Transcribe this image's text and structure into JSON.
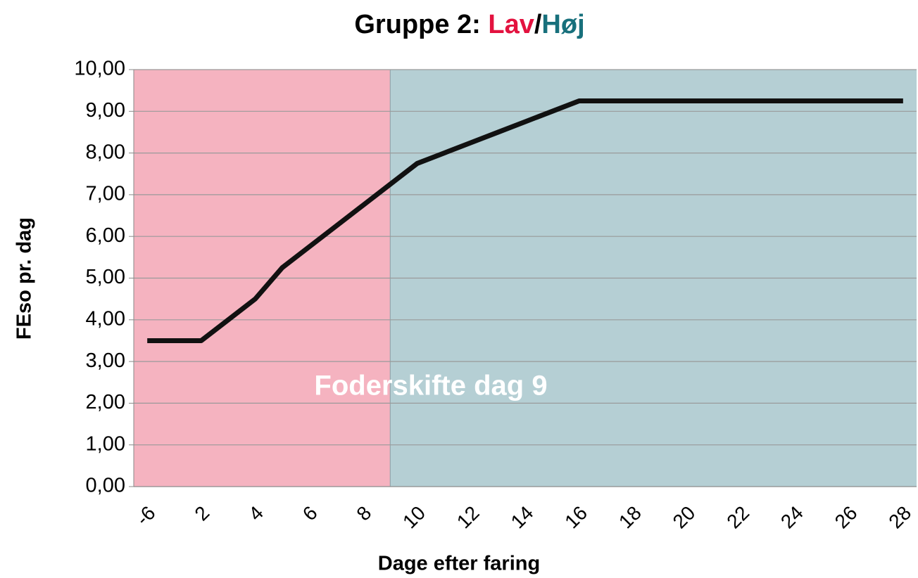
{
  "chart_data": {
    "type": "line",
    "title": [
      {
        "text": "Gruppe 2: "
      },
      {
        "text": "Lav",
        "color": "#e3123f"
      },
      {
        "text": "/"
      },
      {
        "text": "Høj",
        "color": "#18707c"
      }
    ],
    "annotation": "Foderskifte dag 9",
    "x_label": "Dage efter faring",
    "y_label": "FEso pr. dag",
    "categories": [
      -6,
      null,
      2,
      null,
      4,
      null,
      6,
      null,
      8,
      null,
      10,
      null,
      12,
      null,
      14,
      null,
      16,
      null,
      18,
      null,
      20,
      null,
      22,
      null,
      24,
      null,
      26,
      null,
      28
    ],
    "series": [
      {
        "color": "#111111",
        "values": [
          3.5,
          3.5,
          3.5,
          4.0,
          4.5,
          5.25,
          5.75,
          6.25,
          6.75,
          7.25,
          7.75,
          8.0,
          8.25,
          8.5,
          8.75,
          9.0,
          9.25,
          9.25,
          9.25,
          9.25,
          9.25,
          9.25,
          9.25,
          9.25,
          9.25,
          9.25,
          9.25,
          9.25,
          9.25
        ]
      }
    ],
    "regions": [
      {
        "color": "#f5b3c0",
        "break_index": 9
      },
      {
        "color": "#b5cfd4"
      }
    ],
    "ylim": [
      0,
      10
    ],
    "yticks": [
      {
        "value": 0,
        "label": "0,00"
      },
      {
        "value": 1,
        "label": "1,00"
      },
      {
        "value": 2,
        "label": "2,00"
      },
      {
        "value": 3,
        "label": "3,00"
      },
      {
        "value": 4,
        "label": "4,00"
      },
      {
        "value": 5,
        "label": "5,00"
      },
      {
        "value": 6,
        "label": "6,00"
      },
      {
        "value": 7,
        "label": "7,00"
      },
      {
        "value": 8,
        "label": "8,00"
      },
      {
        "value": 9,
        "label": "9,00"
      },
      {
        "value": 10,
        "label": "10,00"
      }
    ],
    "grid": true
  }
}
